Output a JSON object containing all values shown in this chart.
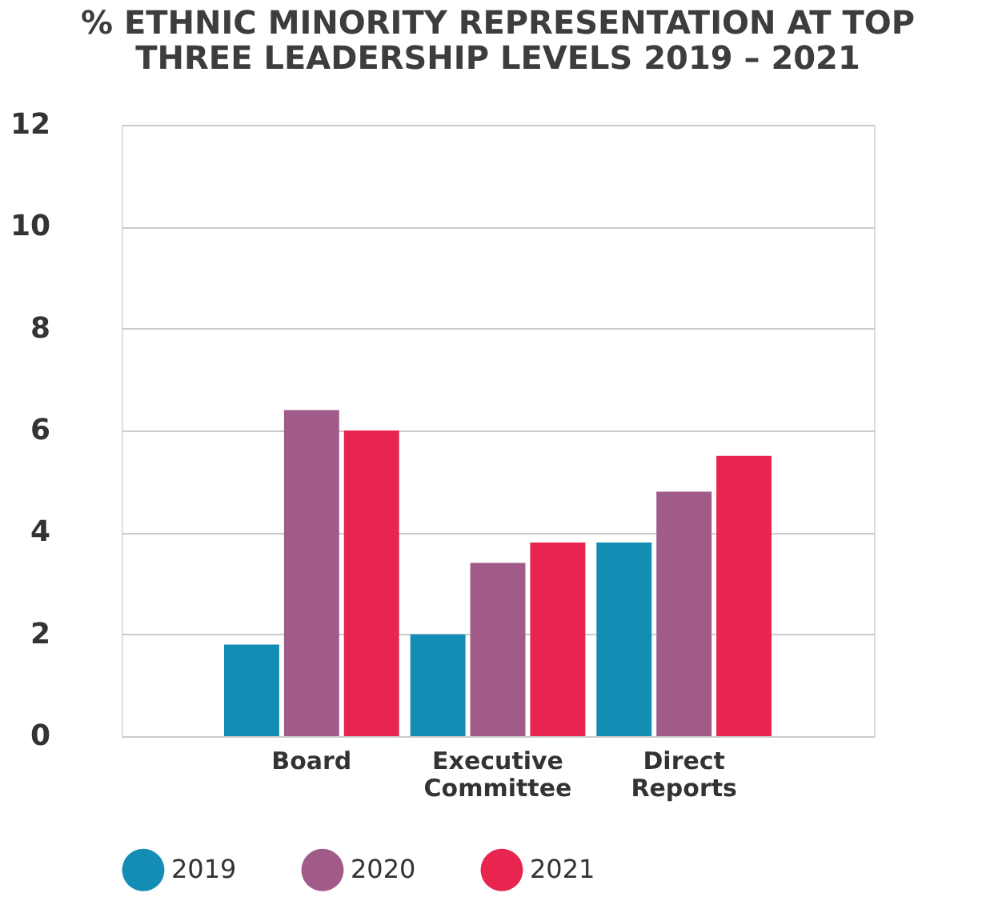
{
  "chart_data": {
    "type": "bar",
    "title": [
      "% ETHNIC MINORITY REPRESENTATION AT TOP",
      "THREE LEADERSHIP LEVELS 2019 – 2021"
    ],
    "categories": [
      "Board",
      "Executive Committee",
      "Direct Reports"
    ],
    "series": [
      {
        "name": "2019",
        "color": "#138db3",
        "values": [
          1.8,
          2.0,
          3.8
        ]
      },
      {
        "name": "2020",
        "color": "#a05b88",
        "values": [
          6.4,
          3.4,
          4.8
        ]
      },
      {
        "name": "2021",
        "color": "#e8254f",
        "values": [
          6.0,
          3.8,
          5.5
        ]
      }
    ],
    "ylim": [
      0,
      12
    ],
    "yticks": [
      0,
      2,
      4,
      6,
      8,
      10,
      12
    ],
    "grid": "y",
    "legend": "bottom"
  }
}
